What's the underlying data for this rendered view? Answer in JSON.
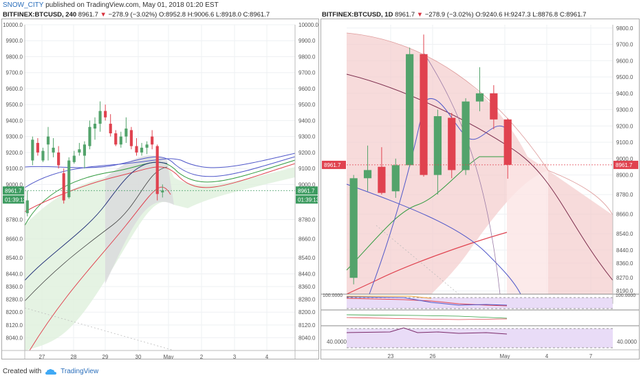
{
  "header": {
    "author": "SNOW_CITY",
    "published": "published on TradingView.com, May 01, 2018 01:20 EST"
  },
  "footer": {
    "created_with": "Created with",
    "brand": "TradingView"
  },
  "chart_data": [
    {
      "type": "candlestick",
      "symbol_line": "BITFINEX:BTCUSD, 240",
      "last": "8961.7",
      "change": "−278.9 (−3.02%)",
      "ohlc": {
        "O": "8952.8",
        "H": "9006.6",
        "L": "8918.0",
        "C": "8961.7"
      },
      "price_tag": "8961.7",
      "time_tag": "01:39:13",
      "ylim": [
        7960,
        10000
      ],
      "y_ticks": [
        "10000.0",
        "9900.0",
        "9800.0",
        "9700.0",
        "9600.0",
        "9500.0",
        "9400.0",
        "9300.0",
        "9200.0",
        "9100.0",
        "9000.0",
        "8780.0",
        "8660.0",
        "8540.0",
        "8440.0",
        "8360.0",
        "8280.0",
        "8200.0",
        "8120.0",
        "8040.0"
      ],
      "x_ticks": [
        "27",
        "28",
        "29",
        "30",
        "May",
        "2",
        "3",
        "4"
      ],
      "candles": [
        {
          "t": 0,
          "o": 8820,
          "h": 8960,
          "l": 8800,
          "c": 8900
        },
        {
          "t": 1,
          "o": 9150,
          "h": 9300,
          "l": 9120,
          "c": 9280
        },
        {
          "t": 2,
          "o": 9260,
          "h": 9290,
          "l": 9180,
          "c": 9200
        },
        {
          "t": 3,
          "o": 9150,
          "h": 9230,
          "l": 9140,
          "c": 9210
        },
        {
          "t": 4,
          "o": 9250,
          "h": 9360,
          "l": 9150,
          "c": 9300
        },
        {
          "t": 5,
          "o": 9200,
          "h": 9290,
          "l": 9170,
          "c": 9230
        },
        {
          "t": 6,
          "o": 9200,
          "h": 9240,
          "l": 9100,
          "c": 9120
        },
        {
          "t": 7,
          "o": 9070,
          "h": 9100,
          "l": 8880,
          "c": 8900
        },
        {
          "t": 8,
          "o": 8920,
          "h": 9170,
          "l": 8910,
          "c": 9150
        },
        {
          "t": 9,
          "o": 9140,
          "h": 9210,
          "l": 9130,
          "c": 9180
        },
        {
          "t": 10,
          "o": 9200,
          "h": 9260,
          "l": 9180,
          "c": 9220
        },
        {
          "t": 11,
          "o": 9180,
          "h": 9270,
          "l": 9100,
          "c": 9250
        },
        {
          "t": 12,
          "o": 9240,
          "h": 9400,
          "l": 9220,
          "c": 9360
        },
        {
          "t": 13,
          "o": 9350,
          "h": 9420,
          "l": 9280,
          "c": 9380
        },
        {
          "t": 14,
          "o": 9380,
          "h": 9520,
          "l": 9330,
          "c": 9460
        },
        {
          "t": 15,
          "o": 9460,
          "h": 9500,
          "l": 9400,
          "c": 9420
        },
        {
          "t": 16,
          "o": 9380,
          "h": 9440,
          "l": 9300,
          "c": 9320
        },
        {
          "t": 17,
          "o": 9320,
          "h": 9340,
          "l": 9240,
          "c": 9250
        },
        {
          "t": 18,
          "o": 9250,
          "h": 9330,
          "l": 9230,
          "c": 9300
        },
        {
          "t": 19,
          "o": 9300,
          "h": 9420,
          "l": 9260,
          "c": 9350
        },
        {
          "t": 20,
          "o": 9340,
          "h": 9360,
          "l": 9220,
          "c": 9240
        },
        {
          "t": 21,
          "o": 9240,
          "h": 9290,
          "l": 9180,
          "c": 9200
        },
        {
          "t": 22,
          "o": 9200,
          "h": 9260,
          "l": 9180,
          "c": 9230
        },
        {
          "t": 23,
          "o": 9230,
          "h": 9270,
          "l": 9190,
          "c": 9250
        },
        {
          "t": 24,
          "o": 9300,
          "h": 9340,
          "l": 9220,
          "c": 9250
        },
        {
          "t": 25,
          "o": 9240,
          "h": 9250,
          "l": 8900,
          "c": 8940
        },
        {
          "t": 26,
          "o": 8950,
          "h": 9000,
          "l": 8918,
          "c": 8962
        }
      ]
    },
    {
      "type": "candlestick",
      "symbol_line": "BITFINEX:BTCUSD, 1D",
      "last": "8961.7",
      "change": "−278.9 (−3.02%)",
      "ohlc": {
        "O": "9240.6",
        "H": "9247.3",
        "L": "8876.8",
        "C": "8961.7"
      },
      "price_tag": "8961.7",
      "ylim": [
        8170,
        9820
      ],
      "y_ticks": [
        "9800.0",
        "9700.0",
        "9600.0",
        "9500.0",
        "9400.0",
        "9300.0",
        "9200.0",
        "9100.0",
        "9000.0",
        "8900.0",
        "8780.0",
        "8660.0",
        "8540.0",
        "8440.0",
        "8360.0",
        "8270.0",
        "8190.0"
      ],
      "x_ticks": [
        "23",
        "26",
        "May",
        "4",
        "7"
      ],
      "candles": [
        {
          "t": 0,
          "o": 8270,
          "h": 8900,
          "l": 8230,
          "c": 8880
        },
        {
          "t": 1,
          "o": 8880,
          "h": 9080,
          "l": 8800,
          "c": 8930
        },
        {
          "t": 2,
          "o": 8950,
          "h": 9070,
          "l": 8780,
          "c": 8790
        },
        {
          "t": 3,
          "o": 8800,
          "h": 9000,
          "l": 8760,
          "c": 8960
        },
        {
          "t": 4,
          "o": 8960,
          "h": 9680,
          "l": 8950,
          "c": 9640
        },
        {
          "t": 5,
          "o": 9640,
          "h": 9760,
          "l": 8890,
          "c": 8900
        },
        {
          "t": 6,
          "o": 8900,
          "h": 9300,
          "l": 8780,
          "c": 9260
        },
        {
          "t": 7,
          "o": 9250,
          "h": 9280,
          "l": 8880,
          "c": 8930
        },
        {
          "t": 8,
          "o": 8930,
          "h": 9370,
          "l": 8900,
          "c": 9350
        },
        {
          "t": 9,
          "o": 9350,
          "h": 9560,
          "l": 9290,
          "c": 9400
        },
        {
          "t": 10,
          "o": 9400,
          "h": 9450,
          "l": 9180,
          "c": 9240
        },
        {
          "t": 11,
          "o": 9240,
          "h": 9247,
          "l": 8877,
          "c": 8962
        }
      ],
      "oscillator_1_ticks": [
        "100.0000"
      ],
      "oscillator_2_ticks": [
        "40.0000"
      ]
    }
  ],
  "colors": {
    "up": "#53a36b",
    "down": "#e0424f",
    "price_tag": "#3d9b60",
    "price_tag_red": "#e0424f",
    "author": "#2a6ebb"
  }
}
